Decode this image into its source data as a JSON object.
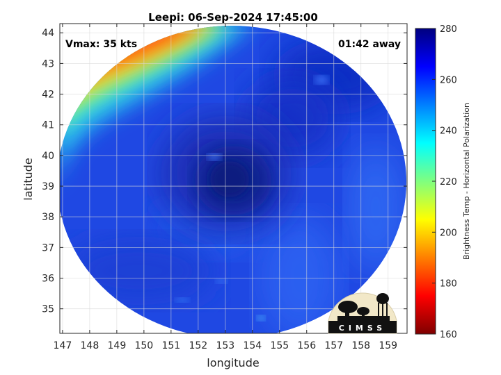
{
  "chart_data": {
    "type": "heatmap",
    "title": "Leepi: 06-Sep-2024 17:45:00",
    "xlabel": "longitude",
    "ylabel": "latitude",
    "xlim": [
      146.9,
      159.7
    ],
    "ylim": [
      34.2,
      44.3
    ],
    "x_ticks": [
      147,
      148,
      149,
      150,
      151,
      152,
      153,
      154,
      155,
      156,
      157,
      158,
      159
    ],
    "y_ticks": [
      35,
      36,
      37,
      38,
      39,
      40,
      41,
      42,
      43,
      44
    ],
    "grid": true,
    "annotations": {
      "vmax": "Vmax: 35 kts",
      "time_away": "01:42 away"
    },
    "colorbar": {
      "label": "Brightness Temp - Horizontal Polarization",
      "range": [
        160,
        280
      ],
      "ticks": [
        160,
        180,
        200,
        220,
        240,
        260,
        280
      ],
      "colormap": "jet"
    },
    "swath": {
      "center_lon": 153.3,
      "center_lat": 39.2,
      "description": "circular swath; cyclone eye near center"
    },
    "field": {
      "eye_lon": 153.4,
      "eye_lat": 39.1,
      "eye_value": 272,
      "background_value": 260,
      "warm_band_value": 190,
      "warm_band_corner": "top-left"
    },
    "logo": {
      "text": "CIMSS"
    }
  },
  "colors": {
    "background": "#ffffff",
    "grid": "#d9d9d9",
    "axis": "#262626"
  }
}
